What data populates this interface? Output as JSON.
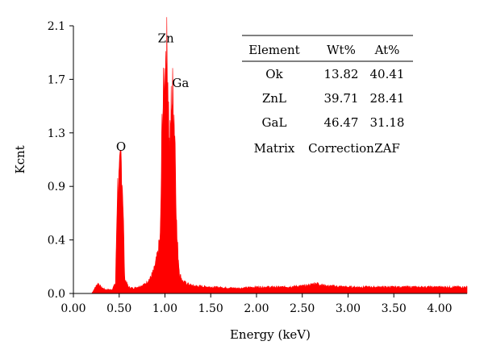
{
  "chart_data": {
    "type": "area",
    "xlabel": "Energy (keV)",
    "ylabel": "Kcnt",
    "xlim": [
      0,
      4.3
    ],
    "ylim": [
      0,
      2.1
    ],
    "x_ticks": [
      "0.00",
      "0.50",
      "1.00",
      "1.50",
      "2.00",
      "2.50",
      "3.00",
      "3.50",
      "4.00"
    ],
    "y_ticks": [
      "0.0",
      "0.4",
      "0.9",
      "1.3",
      "1.7",
      "2.1"
    ],
    "series_color": "#ff0000",
    "peaks": [
      {
        "label": "O",
        "x": 0.52,
        "y": 1.07
      },
      {
        "label": "Zn",
        "x": 1.01,
        "y": 1.92
      },
      {
        "label": "Ga",
        "x": 1.1,
        "y": 1.57
      }
    ],
    "spectrum": [
      [
        0.0,
        0.0
      ],
      [
        0.2,
        0.0
      ],
      [
        0.24,
        0.05
      ],
      [
        0.27,
        0.08
      ],
      [
        0.3,
        0.05
      ],
      [
        0.35,
        0.03
      ],
      [
        0.42,
        0.03
      ],
      [
        0.46,
        0.08
      ],
      [
        0.48,
        0.82
      ],
      [
        0.5,
        0.88
      ],
      [
        0.52,
        1.07
      ],
      [
        0.54,
        0.8
      ],
      [
        0.56,
        0.12
      ],
      [
        0.6,
        0.05
      ],
      [
        0.65,
        0.04
      ],
      [
        0.7,
        0.05
      ],
      [
        0.78,
        0.07
      ],
      [
        0.84,
        0.12
      ],
      [
        0.88,
        0.18
      ],
      [
        0.92,
        0.3
      ],
      [
        0.95,
        0.45
      ],
      [
        0.97,
        1.4
      ],
      [
        0.99,
        1.55
      ],
      [
        1.01,
        1.92
      ],
      [
        1.03,
        1.8
      ],
      [
        1.05,
        1.05
      ],
      [
        1.07,
        1.5
      ],
      [
        1.09,
        1.57
      ],
      [
        1.11,
        1.25
      ],
      [
        1.13,
        0.45
      ],
      [
        1.16,
        0.15
      ],
      [
        1.2,
        0.09
      ],
      [
        1.3,
        0.06
      ],
      [
        1.5,
        0.05
      ],
      [
        1.8,
        0.04
      ],
      [
        2.0,
        0.05
      ],
      [
        2.3,
        0.05
      ],
      [
        2.55,
        0.06
      ],
      [
        2.65,
        0.08
      ],
      [
        2.75,
        0.06
      ],
      [
        3.0,
        0.05
      ],
      [
        3.5,
        0.05
      ],
      [
        4.0,
        0.05
      ],
      [
        4.3,
        0.05
      ]
    ]
  },
  "table": {
    "headers": [
      "Element",
      "Wt%",
      "At%"
    ],
    "rows": [
      [
        "Ok",
        "13.82",
        "40.41"
      ],
      [
        "ZnL",
        "39.71",
        "28.41"
      ],
      [
        "GaL",
        "46.47",
        "31.18"
      ]
    ],
    "footer": [
      "Matrix",
      "Correction",
      "ZAF"
    ]
  }
}
